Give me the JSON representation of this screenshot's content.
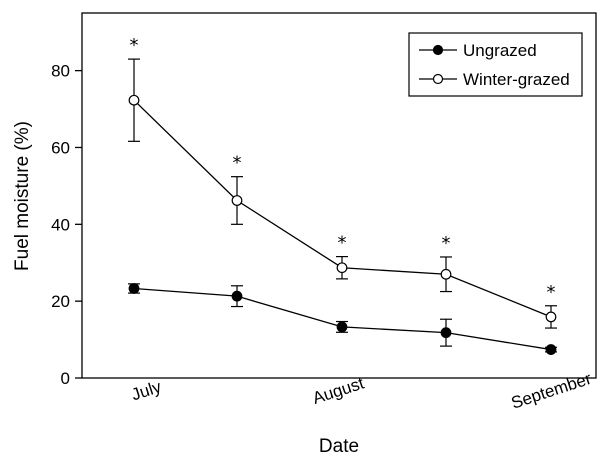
{
  "chart_data": {
    "type": "line",
    "xlabel": "Date",
    "ylabel": "Fuel moisture (%)",
    "ylim": [
      0,
      95
    ],
    "yticks": [
      0,
      20,
      40,
      60,
      80
    ],
    "x_tick_labels": [
      "July",
      "August",
      "September"
    ],
    "grid": false,
    "legend_position": "top-right",
    "series": [
      {
        "name": "Ungrazed",
        "marker": "filled-circle",
        "values": [
          23.3,
          21.3,
          13.3,
          11.8,
          7.4
        ],
        "error": [
          1.2,
          2.7,
          1.4,
          3.5,
          0.6
        ],
        "significant": [
          false,
          false,
          false,
          false,
          false
        ]
      },
      {
        "name": "Winter-grazed",
        "marker": "open-circle",
        "values": [
          72.3,
          46.2,
          28.7,
          27.0,
          15.9
        ],
        "error": [
          10.7,
          6.2,
          2.9,
          4.5,
          2.9
        ],
        "significant": [
          true,
          true,
          true,
          true,
          true
        ]
      }
    ],
    "significance_symbol": "*"
  }
}
